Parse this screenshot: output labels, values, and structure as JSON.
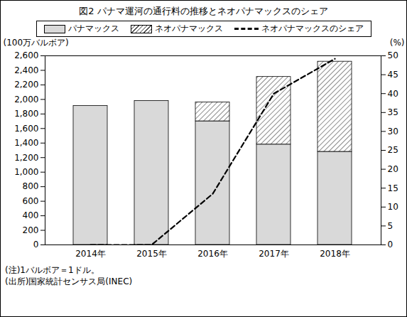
{
  "chart_data": {
    "type": "bar",
    "stacked": true,
    "title": "図2 パナマ運河の通行料の推移とネオパナマックスのシェア",
    "categories": [
      "2014年",
      "2015年",
      "2016年",
      "2017年",
      "2018年"
    ],
    "series": [
      {
        "name": "パナマックス",
        "color": "#d9d9d9",
        "values": [
          1910,
          1980,
          1700,
          1380,
          1280
        ]
      },
      {
        "name": "ネオパナマックス",
        "color": "#404040",
        "values": [
          0,
          0,
          260,
          930,
          1240
        ]
      },
      {
        "name": "ネオパナマックスのシェア",
        "type": "line",
        "axis": "y2",
        "color": "#000000",
        "line_style": "dashed",
        "values": [
          0,
          0,
          13.5,
          40,
          49.2
        ]
      }
    ],
    "ylabel": "(100万バルボア)",
    "y2label": "(%)",
    "ylim": [
      0,
      2600
    ],
    "yticks": [
      0,
      200,
      400,
      600,
      800,
      {
        "value": 1000,
        "label": "1,000"
      },
      {
        "value": 1200,
        "label": "1,200"
      },
      {
        "value": 1400,
        "label": "1,400"
      },
      {
        "value": 1600,
        "label": "1,600"
      },
      {
        "value": 1800,
        "label": "1,800"
      },
      {
        "value": 2000,
        "label": "2,000"
      },
      {
        "value": 2200,
        "label": "2,200"
      },
      {
        "value": 2400,
        "label": "2,400"
      },
      {
        "value": 2600,
        "label": "2,600"
      }
    ],
    "y2lim": [
      0,
      50
    ],
    "y2ticks": [
      0,
      5,
      10,
      15,
      20,
      25,
      30,
      35,
      40,
      45,
      50
    ],
    "grid": false,
    "legend": "top",
    "annotations": [
      "(注)1バルボア＝1ドル。",
      "(出所)国家統計センサス局(INEC)"
    ]
  }
}
